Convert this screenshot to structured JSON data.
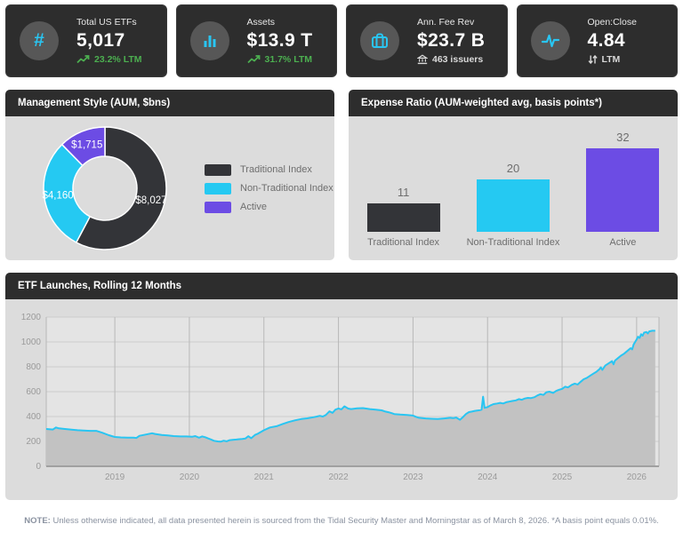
{
  "kpi_cards": [
    {
      "label": "Total US ETFs",
      "value": "5,017",
      "sub": "23.2% LTM",
      "icon": "hash-icon",
      "sub_icon": "trend-up-icon",
      "sub_color": "#4CAF50"
    },
    {
      "label": "Assets",
      "value": "$13.9 T",
      "sub": "31.7% LTM",
      "icon": "bar-chart-icon",
      "sub_icon": "trend-up-icon",
      "sub_color": "#4CAF50"
    },
    {
      "label": "Ann. Fee Rev",
      "value": "$23.7 B",
      "sub": "463 issuers",
      "icon": "briefcase-icon",
      "sub_icon": "bank-icon",
      "sub_color": "#D9D9D9"
    },
    {
      "label": "Open:Close",
      "value": "4.84",
      "sub": "LTM",
      "icon": "activity-icon",
      "sub_icon": "up-down-arrows-icon",
      "sub_color": "#D9D9D9"
    }
  ],
  "panels": {
    "management_style": {
      "title": "Management Style (AUM, $bns)"
    },
    "expense_ratio": {
      "title": "Expense Ratio (AUM-weighted avg, basis points*)"
    },
    "launches": {
      "title": "ETF Launches, Rolling 12 Months"
    }
  },
  "colors": {
    "accent_cyan": "#29C5F2",
    "accent_green": "#4CAF50",
    "accent_purple": "#6C4CE4",
    "slice_dark": "#333438",
    "card_bg": "#2D2D2D",
    "panel_body": "#DCDCDC"
  },
  "chart_data": [
    {
      "type": "donut",
      "title": "Management Style (AUM, $bns)",
      "categories": [
        "Traditional Index",
        "Non-Traditional Index",
        "Active"
      ],
      "values": [
        8027,
        4160,
        1715
      ],
      "labels": [
        "$8,027",
        "$4,160",
        "$1,715"
      ],
      "colors": [
        "#333438",
        "#25C9F2",
        "#6C4CE4"
      ],
      "legend_position": "right"
    },
    {
      "type": "bar",
      "title": "Expense Ratio (AUM-weighted avg, basis points*)",
      "categories": [
        "Traditional Index",
        "Non-Traditional Index",
        "Active"
      ],
      "values": [
        11,
        20,
        32
      ],
      "colors": [
        "#333438",
        "#25C9F2",
        "#6C4CE4"
      ],
      "ylim": [
        0,
        35
      ]
    },
    {
      "type": "area",
      "title": "ETF Launches, Rolling 12 Months",
      "x_range": [
        2018.08,
        2026.3
      ],
      "y_range": [
        0,
        1200
      ],
      "y_ticks": [
        0,
        200,
        400,
        600,
        800,
        1000,
        1200
      ],
      "x_ticks": [
        2019,
        2020,
        2021,
        2022,
        2023,
        2024,
        2025,
        2026
      ],
      "line_color": "#29C5F2",
      "fill_color": "#C2C2C2",
      "points": [
        [
          2018.08,
          300
        ],
        [
          2018.17,
          296
        ],
        [
          2018.21,
          312
        ],
        [
          2018.25,
          305
        ],
        [
          2018.33,
          300
        ],
        [
          2018.42,
          295
        ],
        [
          2018.5,
          290
        ],
        [
          2018.58,
          288
        ],
        [
          2018.67,
          285
        ],
        [
          2018.75,
          285
        ],
        [
          2018.83,
          270
        ],
        [
          2018.92,
          250
        ],
        [
          2019.0,
          236
        ],
        [
          2019.08,
          232
        ],
        [
          2019.17,
          230
        ],
        [
          2019.25,
          230
        ],
        [
          2019.29,
          228
        ],
        [
          2019.33,
          245
        ],
        [
          2019.42,
          256
        ],
        [
          2019.5,
          266
        ],
        [
          2019.54,
          260
        ],
        [
          2019.63,
          252
        ],
        [
          2019.71,
          248
        ],
        [
          2019.79,
          243
        ],
        [
          2019.88,
          240
        ],
        [
          2019.96,
          240
        ],
        [
          2020.04,
          238
        ],
        [
          2020.08,
          243
        ],
        [
          2020.13,
          230
        ],
        [
          2020.17,
          240
        ],
        [
          2020.21,
          234
        ],
        [
          2020.25,
          224
        ],
        [
          2020.29,
          216
        ],
        [
          2020.33,
          205
        ],
        [
          2020.38,
          200
        ],
        [
          2020.42,
          198
        ],
        [
          2020.46,
          206
        ],
        [
          2020.5,
          201
        ],
        [
          2020.54,
          210
        ],
        [
          2020.58,
          212
        ],
        [
          2020.63,
          215
        ],
        [
          2020.67,
          218
        ],
        [
          2020.71,
          220
        ],
        [
          2020.75,
          223
        ],
        [
          2020.79,
          242
        ],
        [
          2020.83,
          226
        ],
        [
          2020.88,
          252
        ],
        [
          2020.92,
          262
        ],
        [
          2021.0,
          290
        ],
        [
          2021.08,
          312
        ],
        [
          2021.17,
          322
        ],
        [
          2021.25,
          340
        ],
        [
          2021.33,
          356
        ],
        [
          2021.42,
          370
        ],
        [
          2021.5,
          380
        ],
        [
          2021.58,
          386
        ],
        [
          2021.67,
          395
        ],
        [
          2021.71,
          400
        ],
        [
          2021.75,
          406
        ],
        [
          2021.79,
          400
        ],
        [
          2021.83,
          412
        ],
        [
          2021.88,
          442
        ],
        [
          2021.92,
          430
        ],
        [
          2021.96,
          456
        ],
        [
          2022.0,
          465
        ],
        [
          2022.04,
          458
        ],
        [
          2022.08,
          482
        ],
        [
          2022.13,
          464
        ],
        [
          2022.17,
          460
        ],
        [
          2022.25,
          466
        ],
        [
          2022.33,
          468
        ],
        [
          2022.42,
          460
        ],
        [
          2022.5,
          455
        ],
        [
          2022.58,
          450
        ],
        [
          2022.63,
          440
        ],
        [
          2022.67,
          435
        ],
        [
          2022.71,
          428
        ],
        [
          2022.75,
          420
        ],
        [
          2022.83,
          416
        ],
        [
          2022.92,
          412
        ],
        [
          2023.0,
          408
        ],
        [
          2023.04,
          398
        ],
        [
          2023.08,
          390
        ],
        [
          2023.17,
          385
        ],
        [
          2023.25,
          382
        ],
        [
          2023.33,
          380
        ],
        [
          2023.42,
          385
        ],
        [
          2023.5,
          390
        ],
        [
          2023.54,
          387
        ],
        [
          2023.58,
          392
        ],
        [
          2023.63,
          374
        ],
        [
          2023.67,
          396
        ],
        [
          2023.71,
          420
        ],
        [
          2023.75,
          436
        ],
        [
          2023.79,
          440
        ],
        [
          2023.83,
          446
        ],
        [
          2023.88,
          450
        ],
        [
          2023.92,
          455
        ],
        [
          2023.94,
          560
        ],
        [
          2023.96,
          470
        ],
        [
          2024.0,
          476
        ],
        [
          2024.04,
          490
        ],
        [
          2024.08,
          500
        ],
        [
          2024.13,
          505
        ],
        [
          2024.17,
          510
        ],
        [
          2024.21,
          505
        ],
        [
          2024.25,
          515
        ],
        [
          2024.29,
          520
        ],
        [
          2024.33,
          525
        ],
        [
          2024.38,
          530
        ],
        [
          2024.42,
          540
        ],
        [
          2024.46,
          535
        ],
        [
          2024.5,
          545
        ],
        [
          2024.54,
          550
        ],
        [
          2024.58,
          548
        ],
        [
          2024.63,
          556
        ],
        [
          2024.67,
          570
        ],
        [
          2024.71,
          580
        ],
        [
          2024.75,
          574
        ],
        [
          2024.79,
          596
        ],
        [
          2024.83,
          600
        ],
        [
          2024.88,
          590
        ],
        [
          2024.92,
          606
        ],
        [
          2024.96,
          616
        ],
        [
          2025.0,
          622
        ],
        [
          2025.04,
          640
        ],
        [
          2025.08,
          634
        ],
        [
          2025.13,
          655
        ],
        [
          2025.17,
          665
        ],
        [
          2025.21,
          658
        ],
        [
          2025.25,
          680
        ],
        [
          2025.29,
          700
        ],
        [
          2025.33,
          710
        ],
        [
          2025.38,
          730
        ],
        [
          2025.42,
          745
        ],
        [
          2025.46,
          760
        ],
        [
          2025.5,
          780
        ],
        [
          2025.52,
          796
        ],
        [
          2025.54,
          775
        ],
        [
          2025.58,
          810
        ],
        [
          2025.63,
          830
        ],
        [
          2025.67,
          846
        ],
        [
          2025.69,
          820
        ],
        [
          2025.71,
          850
        ],
        [
          2025.75,
          870
        ],
        [
          2025.79,
          890
        ],
        [
          2025.83,
          905
        ],
        [
          2025.88,
          930
        ],
        [
          2025.92,
          950
        ],
        [
          2025.94,
          940
        ],
        [
          2025.96,
          980
        ],
        [
          2026.0,
          1020
        ],
        [
          2026.02,
          1042
        ],
        [
          2026.04,
          1032
        ],
        [
          2026.06,
          1062
        ],
        [
          2026.08,
          1050
        ],
        [
          2026.1,
          1075
        ],
        [
          2026.13,
          1080
        ],
        [
          2026.15,
          1068
        ],
        [
          2026.17,
          1085
        ],
        [
          2026.21,
          1090
        ],
        [
          2026.25,
          1090
        ]
      ]
    }
  ],
  "footer": {
    "note_label": "NOTE:",
    "note_text": "Unless otherwise indicated, all data presented herein is sourced from the Tidal Security Master and Morningstar as of March 8, 2026. *A basis point equals 0.01%."
  }
}
